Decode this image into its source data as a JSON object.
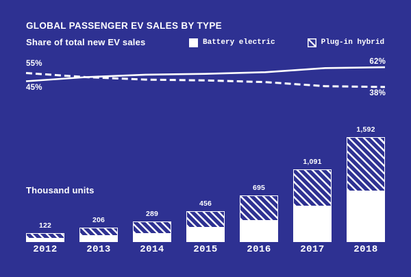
{
  "header": {
    "title": "GLOBAL PASSENGER EV SALES BY TYPE",
    "subtitle": "Share of total new EV sales"
  },
  "legend": {
    "items": [
      {
        "label": "Battery electric",
        "swatch": "solid-white-square"
      },
      {
        "label": "Plug-in hybrid",
        "swatch": "diagonal-hatch-square"
      }
    ]
  },
  "colors": {
    "background": "#2e3192",
    "foreground": "#ffffff"
  },
  "chart_data": {
    "type": "line+bar",
    "years": [
      "2012",
      "2013",
      "2014",
      "2015",
      "2016",
      "2017",
      "2018"
    ],
    "share_of_sales_pct": {
      "title": "Share of total new EV sales",
      "series": [
        {
          "name": "Battery electric",
          "line_style": "solid",
          "values": [
            45,
            50,
            53,
            54,
            56,
            61,
            62
          ],
          "first_point_label": "45%",
          "last_point_label": "62%"
        },
        {
          "name": "Plug-in hybrid",
          "line_style": "dashed",
          "values": [
            55,
            50,
            47,
            46,
            44,
            39,
            38
          ],
          "first_point_label": "55%",
          "last_point_label": "38%"
        }
      ]
    },
    "units_thousand": {
      "ylabel": "Thousand units",
      "totals": [
        122,
        206,
        289,
        456,
        695,
        1091,
        1592
      ],
      "total_labels": [
        "122",
        "206",
        "289",
        "456",
        "695",
        "1,091",
        "1,592"
      ],
      "series": [
        {
          "name": "Battery electric",
          "pattern": "solid-white",
          "position": "bottom",
          "values": [
            57,
            99,
            124,
            223,
            330,
            546,
            780
          ]
        },
        {
          "name": "Plug-in hybrid",
          "pattern": "diagonal-hatch",
          "position": "top",
          "values": [
            65,
            107,
            165,
            233,
            365,
            545,
            812
          ]
        }
      ]
    }
  }
}
